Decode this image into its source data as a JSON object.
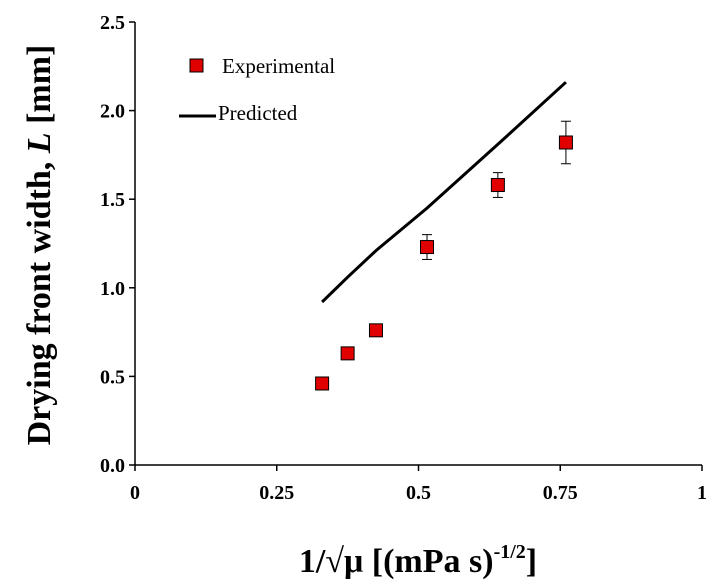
{
  "chart_data": {
    "type": "scatter",
    "xlabel": "1/√μ [(mPa s)",
    "xlabel_sup": "-1/2",
    "xlabel_suffix": "]",
    "ylabel": "Drying front width, ",
    "ylabel_italic": "L",
    "ylabel_suffix": " [mm]",
    "xlim": [
      0,
      1
    ],
    "ylim": [
      0,
      2.5
    ],
    "x_ticks": [
      0,
      0.25,
      0.5,
      0.75,
      1
    ],
    "x_tick_labels": [
      "0",
      "0.25",
      "0.5",
      "0.75",
      "1"
    ],
    "y_ticks": [
      0,
      0.5,
      1.0,
      1.5,
      2.0,
      2.5
    ],
    "y_tick_labels": [
      "0.0",
      "0.5",
      "1.0",
      "1.5",
      "2.0",
      "2.5"
    ],
    "grid": false,
    "legend_position": "top-left",
    "series": [
      {
        "name": "Experimental",
        "kind": "markers",
        "marker_color": "#e00000",
        "points": [
          {
            "x": 0.33,
            "y": 0.46,
            "err": 0.0
          },
          {
            "x": 0.375,
            "y": 0.63,
            "err": 0.03
          },
          {
            "x": 0.425,
            "y": 0.76,
            "err": 0.0
          },
          {
            "x": 0.515,
            "y": 1.23,
            "err": 0.07
          },
          {
            "x": 0.64,
            "y": 1.58,
            "err": 0.07
          },
          {
            "x": 0.76,
            "y": 1.82,
            "err": 0.12
          }
        ]
      },
      {
        "name": "Predicted",
        "kind": "line",
        "line_color": "#000000",
        "points": [
          {
            "x": 0.33,
            "y": 0.92
          },
          {
            "x": 0.375,
            "y": 1.06
          },
          {
            "x": 0.425,
            "y": 1.21
          },
          {
            "x": 0.515,
            "y": 1.45
          },
          {
            "x": 0.64,
            "y": 1.81
          },
          {
            "x": 0.76,
            "y": 2.16
          }
        ]
      }
    ]
  }
}
